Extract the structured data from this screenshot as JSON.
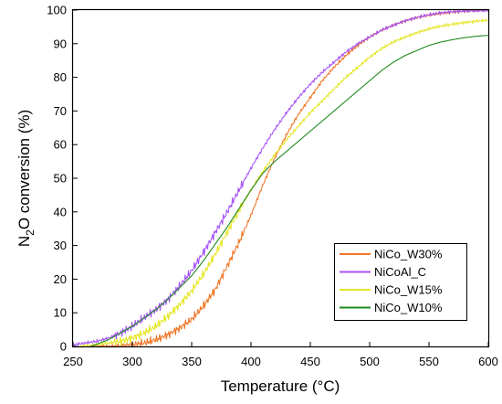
{
  "chart_data": {
    "type": "line",
    "xlabel": "Temperature (°C)",
    "ylabel": {
      "prefix": "N",
      "subscript": "2",
      "suffix": "O conversion (%)"
    },
    "xlim": [
      250,
      600
    ],
    "ylim": [
      0,
      100
    ],
    "xticks": [
      "250",
      "300",
      "350",
      "400",
      "450",
      "500",
      "550",
      "600"
    ],
    "yticks": [
      "0",
      "10",
      "20",
      "30",
      "40",
      "50",
      "60",
      "70",
      "80",
      "90",
      "100"
    ],
    "grid": false,
    "legend_position": "bottom-right",
    "series": [
      {
        "name": "NiCo_W30%",
        "color": "#f07828",
        "noisy": true,
        "x": [
          265,
          280,
          290,
          300,
          310,
          320,
          330,
          340,
          350,
          360,
          370,
          380,
          390,
          400,
          410,
          420,
          430,
          440,
          450,
          460,
          470,
          480,
          490,
          500,
          510,
          520,
          530,
          540,
          550,
          560,
          570,
          580,
          590,
          600
        ],
        "y": [
          0,
          0,
          0,
          0.5,
          1,
          2,
          3.5,
          5.5,
          8,
          12,
          17,
          24,
          31,
          39,
          48,
          56,
          63,
          69,
          74,
          79,
          83,
          86.5,
          89.5,
          92,
          94,
          95.5,
          96.8,
          97.8,
          98.5,
          99,
          99.4,
          99.7,
          99.9,
          100
        ]
      },
      {
        "name": "NiCoAl_C",
        "color": "#a855f7",
        "noisy": true,
        "x": [
          250,
          260,
          270,
          280,
          290,
          300,
          310,
          320,
          330,
          340,
          350,
          360,
          370,
          380,
          390,
          400,
          410,
          420,
          430,
          440,
          450,
          460,
          470,
          480,
          490,
          500,
          510,
          520,
          530,
          540,
          550,
          560,
          570,
          580,
          590,
          600
        ],
        "y": [
          0.5,
          1,
          1.5,
          2.5,
          4,
          6,
          8.5,
          11,
          14,
          18,
          22.5,
          28,
          34,
          40,
          46.5,
          53,
          59,
          64.5,
          69.5,
          74,
          78,
          81.5,
          84.5,
          87.5,
          90,
          92,
          94,
          95.5,
          96.8,
          97.8,
          98.6,
          99.2,
          99.5,
          99.7,
          99.8,
          99.9
        ]
      },
      {
        "name": "NiCo_W15%",
        "color": "#e6e62a",
        "noisy": true,
        "x": [
          255,
          270,
          280,
          290,
          300,
          310,
          320,
          330,
          340,
          350,
          360,
          370,
          380,
          390,
          400,
          410,
          420,
          430,
          440,
          450,
          460,
          470,
          480,
          490,
          500,
          510,
          520,
          530,
          540,
          550,
          560,
          570,
          580,
          590,
          600
        ],
        "y": [
          0,
          0.5,
          1,
          1.5,
          2.5,
          4,
          6,
          9,
          12.5,
          16.5,
          21.5,
          27.5,
          34,
          40.5,
          46.5,
          52,
          57,
          61.5,
          65.5,
          69.5,
          73,
          76.5,
          80,
          83,
          86,
          88.5,
          90.5,
          92,
          93.3,
          94.4,
          95.2,
          95.8,
          96.3,
          96.7,
          97
        ]
      },
      {
        "name": "NiCo_W10%",
        "color": "#1f8a1f",
        "noisy": false,
        "x": [
          265,
          280,
          290,
          300,
          310,
          320,
          330,
          340,
          350,
          360,
          370,
          380,
          390,
          400,
          410,
          420,
          430,
          440,
          450,
          460,
          470,
          480,
          490,
          500,
          510,
          520,
          530,
          540,
          550,
          560,
          570,
          580,
          590,
          600
        ],
        "y": [
          0,
          2,
          4,
          6,
          8.5,
          11,
          14,
          17.5,
          21,
          25.5,
          30.5,
          35.5,
          41,
          46.5,
          51.5,
          55,
          58,
          61,
          64,
          67,
          70,
          73,
          76,
          79,
          82,
          84.5,
          86.5,
          88,
          89.5,
          90.5,
          91.2,
          91.8,
          92.2,
          92.5
        ]
      }
    ]
  }
}
